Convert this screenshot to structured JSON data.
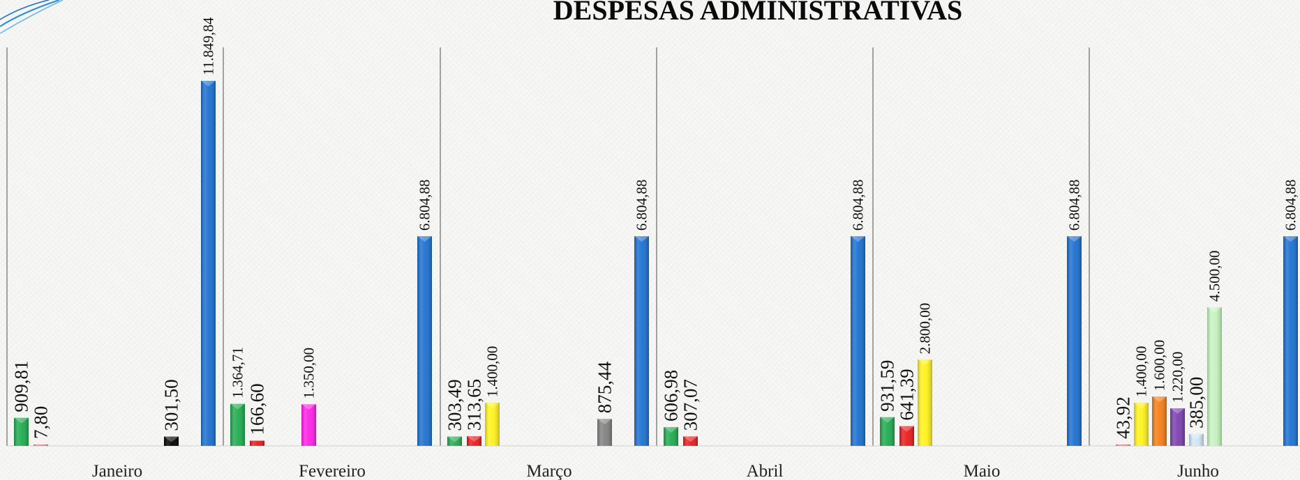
{
  "chart_data": {
    "type": "bar",
    "title": "DESPESAS ADMINISTRATIVAS",
    "xlabel": "",
    "ylabel": "",
    "ylim": [
      0,
      11849.84
    ],
    "grid": false,
    "legend": "none",
    "categories": [
      "Janeiro",
      "Fevereiro",
      "Março",
      "Abril",
      "Maio",
      "Junho"
    ],
    "groups": [
      {
        "category": "Janeiro",
        "bars": [
          {
            "value": 909.81,
            "label": "909,81",
            "color": "#1faa4e"
          },
          {
            "value": 7.8,
            "label": "7,80",
            "color": "#f08a8a"
          },
          {
            "value": 301.5,
            "label": "301,50",
            "color": "#000000"
          },
          {
            "value": 11849.84,
            "label": "11.849,84",
            "color": "#1a6fcf"
          }
        ]
      },
      {
        "category": "Fevereiro",
        "bars": [
          {
            "value": 1364.71,
            "label": "1.364,71",
            "color": "#1faa4e"
          },
          {
            "value": 166.6,
            "label": "166,60",
            "color": "#e81b1b"
          },
          {
            "value": 1350.0,
            "label": "1.350,00",
            "color": "#ff1ee8"
          },
          {
            "value": 6804.88,
            "label": "6.804,88",
            "color": "#1a6fcf"
          }
        ]
      },
      {
        "category": "Março",
        "bars": [
          {
            "value": 303.49,
            "label": "303,49",
            "color": "#1faa4e"
          },
          {
            "value": 313.65,
            "label": "313,65",
            "color": "#e81b1b"
          },
          {
            "value": 1400.0,
            "label": "1.400,00",
            "color": "#fff21a"
          },
          {
            "value": 875.44,
            "label": "875,44",
            "color": "#808080"
          },
          {
            "value": 6804.88,
            "label": "6.804,88",
            "color": "#1a6fcf"
          }
        ]
      },
      {
        "category": "Abril",
        "bars": [
          {
            "value": 606.98,
            "label": "606,98",
            "color": "#1faa4e"
          },
          {
            "value": 307.07,
            "label": "307,07",
            "color": "#e81b1b"
          },
          {
            "value": 6804.88,
            "label": "6.804,88",
            "color": "#1a6fcf"
          }
        ]
      },
      {
        "category": "Maio",
        "bars": [
          {
            "value": 931.59,
            "label": "931,59",
            "color": "#1faa4e"
          },
          {
            "value": 641.39,
            "label": "641,39",
            "color": "#e81b1b"
          },
          {
            "value": 2800.0,
            "label": "2.800,00",
            "color": "#fff21a"
          },
          {
            "value": 6804.88,
            "label": "6.804,88",
            "color": "#1a6fcf"
          }
        ]
      },
      {
        "category": "Junho",
        "bars": [
          {
            "value": 43.92,
            "label": "43,92",
            "color": "#f08a8a"
          },
          {
            "value": 1400.0,
            "label": "1.400,00",
            "color": "#fff21a"
          },
          {
            "value": 1600.0,
            "label": "1.600,00",
            "color": "#f57c14"
          },
          {
            "value": 1220.0,
            "label": "1.220,00",
            "color": "#7b3fae"
          },
          {
            "value": 385.0,
            "label": "385,00",
            "color": "#cfe6f5"
          },
          {
            "value": 4500.0,
            "label": "4.500,00",
            "color": "#c6f2c0"
          },
          {
            "value": 6804.88,
            "label": "6.804,88",
            "color": "#1a6fcf"
          }
        ]
      }
    ]
  }
}
